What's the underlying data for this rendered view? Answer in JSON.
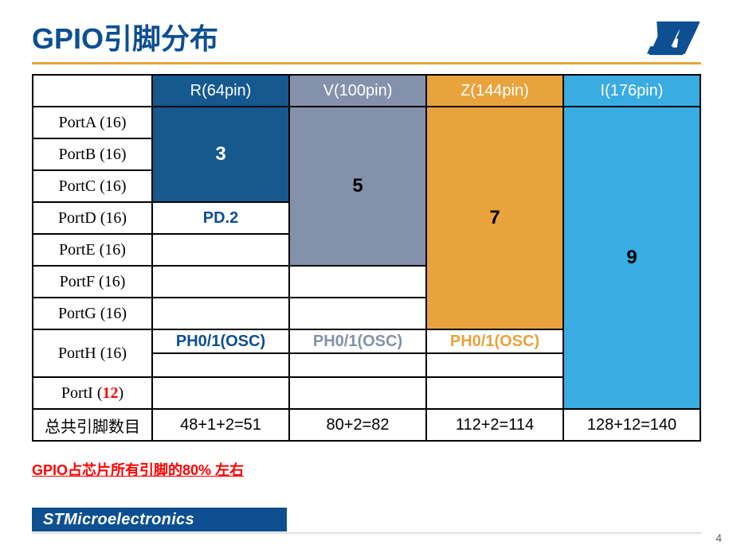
{
  "colors": {
    "st_blue": "#0d4f91",
    "header_blue_dark": "#15598f",
    "header_gray": "#8391ab",
    "header_orange": "#e8a33d",
    "header_lightblue": "#39ace2",
    "caption_red": "#ff0000",
    "footer_blue": "#0d4f91",
    "title_blue": "#0d4f91"
  },
  "title": "GPIO引脚分布",
  "logo_text": "ST",
  "headers": [
    "R(64pin)",
    "V(100pin)",
    "Z(144pin)",
    "I(176pin)"
  ],
  "row_labels": [
    "PortA (16)",
    "PortB (16)",
    "PortC (16)",
    "PortD (16)",
    "PortE (16)",
    "PortF (16)",
    "PortG (16)",
    "PortH (16)"
  ],
  "porti": {
    "pre": "PortI (",
    "num": "12",
    "post": ")"
  },
  "block_r": "3",
  "block_v": "5",
  "block_z": "7",
  "block_i": "9",
  "pd2": "PD.2",
  "ph_r": "PH0/1(OSC)",
  "ph_v": "PH0/1(OSC)",
  "ph_z": "PH0/1(OSC)",
  "total_label": "总共引脚数目",
  "totals": [
    "48+1+2=51",
    "80+2=82",
    "112+2=114",
    "128+12=140"
  ],
  "caption": "GPIO占芯片所有引脚的80% 左右",
  "footer": "STMicroelectronics",
  "page": "4"
}
